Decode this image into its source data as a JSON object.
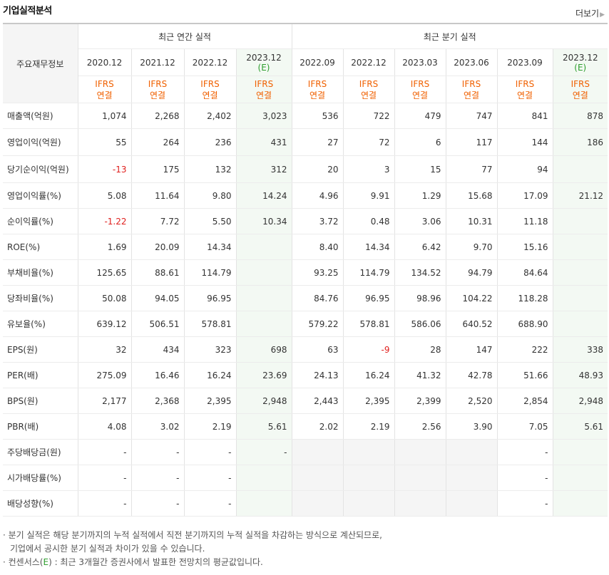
{
  "title": "기업실적분석",
  "more_label": "더보기",
  "header": {
    "label_col": "주요재무정보",
    "annual_group": "최근 연간 실적",
    "quarter_group": "최근 분기 실적",
    "annual_periods": [
      {
        "date": "2020.12",
        "est": "",
        "std1": "IFRS",
        "std2": "연결"
      },
      {
        "date": "2021.12",
        "est": "",
        "std1": "IFRS",
        "std2": "연결"
      },
      {
        "date": "2022.12",
        "est": "",
        "std1": "IFRS",
        "std2": "연결"
      },
      {
        "date": "2023.12",
        "est": "(E)",
        "std1": "IFRS",
        "std2": "연결"
      }
    ],
    "quarter_periods": [
      {
        "date": "2022.09",
        "est": "",
        "std1": "IFRS",
        "std2": "연결"
      },
      {
        "date": "2022.12",
        "est": "",
        "std1": "IFRS",
        "std2": "연결"
      },
      {
        "date": "2023.03",
        "est": "",
        "std1": "IFRS",
        "std2": "연결"
      },
      {
        "date": "2023.06",
        "est": "",
        "std1": "IFRS",
        "std2": "연결"
      },
      {
        "date": "2023.09",
        "est": "",
        "std1": "IFRS",
        "std2": "연결"
      },
      {
        "date": "2023.12",
        "est": "(E)",
        "std1": "IFRS",
        "std2": "연결"
      }
    ]
  },
  "rows": [
    {
      "label": "매출액(억원)",
      "annual": [
        "1,074",
        "2,268",
        "2,402",
        "3,023"
      ],
      "quarter": [
        "536",
        "722",
        "479",
        "747",
        "841",
        "878"
      ]
    },
    {
      "label": "영업이익(억원)",
      "annual": [
        "55",
        "264",
        "236",
        "431"
      ],
      "quarter": [
        "27",
        "72",
        "6",
        "117",
        "144",
        "186"
      ]
    },
    {
      "label": "당기순이익(억원)",
      "annual": [
        "-13",
        "175",
        "132",
        "312"
      ],
      "quarter": [
        "20",
        "3",
        "15",
        "77",
        "94",
        ""
      ]
    },
    {
      "label": "영업이익률(%)",
      "annual": [
        "5.08",
        "11.64",
        "9.80",
        "14.24"
      ],
      "quarter": [
        "4.96",
        "9.91",
        "1.29",
        "15.68",
        "17.09",
        "21.12"
      ]
    },
    {
      "label": "순이익률(%)",
      "annual": [
        "-1.22",
        "7.72",
        "5.50",
        "10.34"
      ],
      "quarter": [
        "3.72",
        "0.48",
        "3.06",
        "10.31",
        "11.18",
        ""
      ]
    },
    {
      "label": "ROE(%)",
      "annual": [
        "1.69",
        "20.09",
        "14.34",
        ""
      ],
      "quarter": [
        "8.40",
        "14.34",
        "6.42",
        "9.70",
        "15.16",
        ""
      ]
    },
    {
      "label": "부채비율(%)",
      "annual": [
        "125.65",
        "88.61",
        "114.79",
        ""
      ],
      "quarter": [
        "93.25",
        "114.79",
        "134.52",
        "94.79",
        "84.64",
        ""
      ]
    },
    {
      "label": "당좌비율(%)",
      "annual": [
        "50.08",
        "94.05",
        "96.95",
        ""
      ],
      "quarter": [
        "84.76",
        "96.95",
        "98.96",
        "104.22",
        "118.28",
        ""
      ]
    },
    {
      "label": "유보율(%)",
      "annual": [
        "639.12",
        "506.51",
        "578.81",
        ""
      ],
      "quarter": [
        "579.22",
        "578.81",
        "586.06",
        "640.52",
        "688.90",
        ""
      ]
    },
    {
      "label": "EPS(원)",
      "annual": [
        "32",
        "434",
        "323",
        "698"
      ],
      "quarter": [
        "63",
        "-9",
        "28",
        "147",
        "222",
        "338"
      ]
    },
    {
      "label": "PER(배)",
      "annual": [
        "275.09",
        "16.46",
        "16.24",
        "23.69"
      ],
      "quarter": [
        "24.13",
        "16.24",
        "41.32",
        "42.78",
        "51.66",
        "48.93"
      ]
    },
    {
      "label": "BPS(원)",
      "annual": [
        "2,177",
        "2,368",
        "2,395",
        "2,948"
      ],
      "quarter": [
        "2,443",
        "2,395",
        "2,399",
        "2,520",
        "2,854",
        "2,948"
      ]
    },
    {
      "label": "PBR(배)",
      "annual": [
        "4.08",
        "3.02",
        "2.19",
        "5.61"
      ],
      "quarter": [
        "2.02",
        "2.19",
        "2.56",
        "3.90",
        "7.05",
        "5.61"
      ]
    },
    {
      "label": "주당배당금(원)",
      "annual": [
        "-",
        "-",
        "-",
        "-"
      ],
      "quarter": [
        "",
        "",
        "",
        "",
        "-",
        ""
      ]
    },
    {
      "label": "시가배당률(%)",
      "annual": [
        "-",
        "-",
        "-",
        ""
      ],
      "quarter": [
        "",
        "",
        "",
        "",
        "-",
        ""
      ]
    },
    {
      "label": "배당성향(%)",
      "annual": [
        "-",
        "-",
        "-",
        ""
      ],
      "quarter": [
        "",
        "",
        "",
        "",
        "-",
        ""
      ]
    }
  ],
  "notes": {
    "line1": "· 분기 실적은 해당 분기까지의 누적 실적에서 직전 분기까지의 누적 실적을 차감하는 방식으로 계산되므로,",
    "line2": "기업에서 공시한 분기 실적과 차이가 있을 수 있습니다.",
    "line3_prefix": "· 컨센서스(",
    "line3_e": "E",
    "line3_suffix": ") : 최근 3개월간 증권사에서 발표한 전망치의 평균값입니다."
  },
  "colors": {
    "accent_orange": "#f06000",
    "estimate_green": "#2e9e2e",
    "negative_red": "#e0201e",
    "estimate_bg": "#f3f9f3"
  }
}
